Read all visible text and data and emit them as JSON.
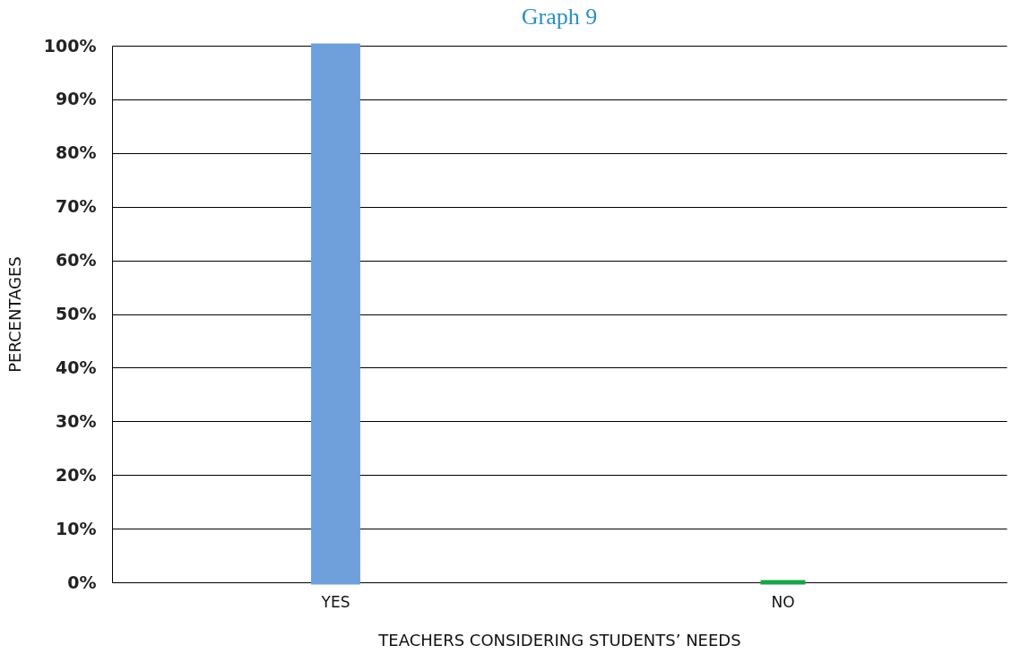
{
  "chart_data": {
    "type": "bar",
    "title": "Graph 9",
    "xlabel": "TEACHERS CONSIDERING STUDENTS’ NEEDS",
    "ylabel": "PERCENTAGES",
    "categories": [
      "YES",
      "NO"
    ],
    "values": [
      100,
      0
    ],
    "colors": [
      "#6fa0dc",
      "#1aa34a"
    ],
    "ylim": [
      0,
      100
    ],
    "yticks": [
      {
        "value": 0,
        "label": "0%"
      },
      {
        "value": 10,
        "label": "10%"
      },
      {
        "value": 20,
        "label": "20%"
      },
      {
        "value": 30,
        "label": "30%"
      },
      {
        "value": 40,
        "label": "40%"
      },
      {
        "value": 50,
        "label": "50%"
      },
      {
        "value": 60,
        "label": "60%"
      },
      {
        "value": 70,
        "label": "70%"
      },
      {
        "value": 80,
        "label": "80%"
      },
      {
        "value": 90,
        "label": "90%"
      },
      {
        "value": 100,
        "label": "100%"
      }
    ],
    "grid": "y",
    "legend": false
  }
}
